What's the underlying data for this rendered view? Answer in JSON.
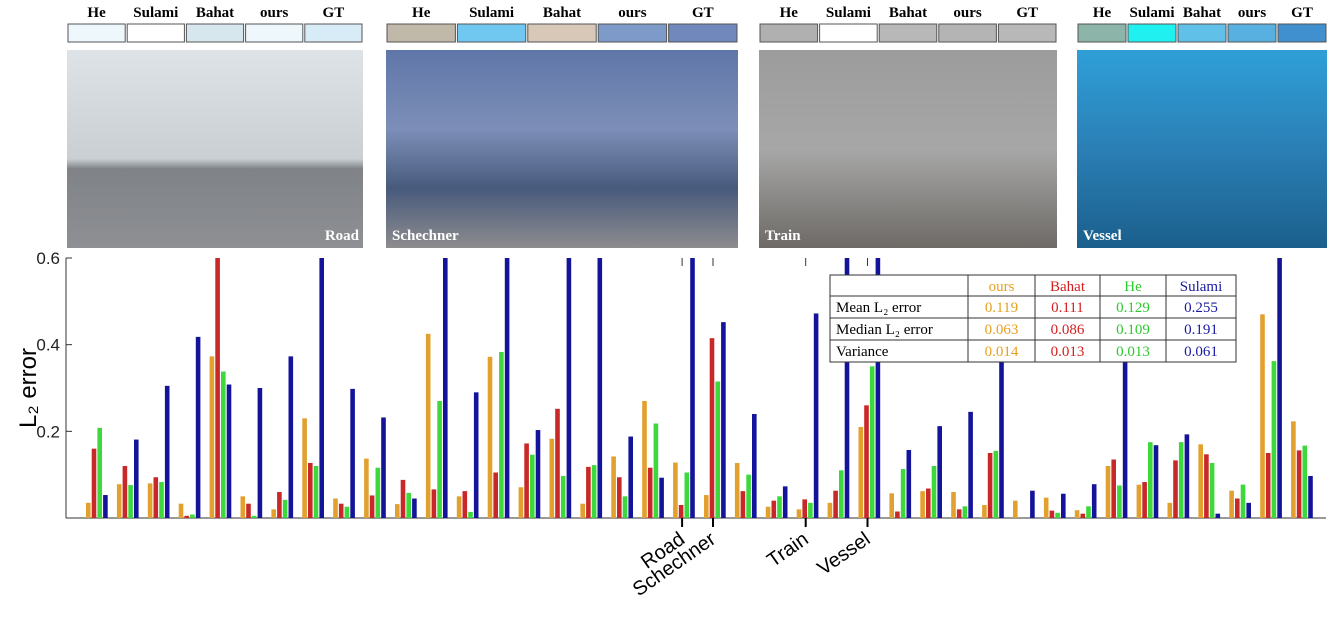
{
  "panels": [
    {
      "caption": "Road",
      "methods": [
        "He",
        "Sulami",
        "Bahat",
        "ours",
        "GT"
      ],
      "swatches": [
        "#eef8fc",
        "#ffffff",
        "#d6e8ee",
        "#eef8fc",
        "#d8ecf8"
      ]
    },
    {
      "caption": "Schechner",
      "methods": [
        "He",
        "Sulami",
        "Bahat",
        "ours",
        "GT"
      ],
      "swatches": [
        "#c0b8a8",
        "#70c8f0",
        "#d8c8b8",
        "#7e9ac8",
        "#7088bc"
      ]
    },
    {
      "caption": "Train",
      "methods": [
        "He",
        "Sulami",
        "Bahat",
        "ours",
        "GT"
      ],
      "swatches": [
        "#b0b0b0",
        "#ffffff",
        "#b8b8b8",
        "#b4b4b4",
        "#b8b8b8"
      ]
    },
    {
      "caption": "Vessel",
      "methods": [
        "He",
        "Sulami",
        "Bahat",
        "ours",
        "GT"
      ],
      "swatches": [
        "#8cb4a8",
        "#20f0f0",
        "#60c0e8",
        "#58b0e0",
        "#4090d0"
      ]
    }
  ],
  "chart_data": {
    "type": "bar",
    "y_label": "L₂ error",
    "categories": [
      null,
      null,
      null,
      null,
      null,
      null,
      null,
      null,
      null,
      null,
      null,
      null,
      null,
      null,
      null,
      null,
      null,
      null,
      null,
      "Road",
      "Schechner",
      null,
      null,
      "Train",
      null,
      "Vessel",
      null,
      null,
      null,
      null,
      null,
      null,
      null,
      null,
      null,
      null,
      null,
      null,
      null,
      null
    ],
    "series": [
      {
        "name": "ours",
        "color": "#e2a02f",
        "values": [
          0.035,
          0.078,
          0.08,
          0.033,
          0.373,
          0.05,
          0.02,
          0.23,
          0.045,
          0.137,
          0.032,
          0.425,
          0.05,
          0.372,
          0.071,
          0.183,
          0.033,
          0.142,
          0.27,
          0.128,
          0.053,
          0.127,
          0.026,
          0.02,
          0.035,
          0.21,
          0.057,
          0.062,
          0.06,
          0.03,
          0.04,
          0.047,
          0.018,
          0.12,
          0.077,
          0.035,
          0.17,
          0.063,
          0.47,
          0.223
        ]
      },
      {
        "name": "Bahat",
        "color": "#c82828",
        "values": [
          0.16,
          0.12,
          0.094,
          0.005,
          0.6,
          0.033,
          0.06,
          0.127,
          0.033,
          0.052,
          0.088,
          0.066,
          0.062,
          0.105,
          0.172,
          0.252,
          0.118,
          0.094,
          0.116,
          0.03,
          0.415,
          0.062,
          0.04,
          0.043,
          0.063,
          0.26,
          0.015,
          0.068,
          0.02,
          0.15,
          0,
          0.017,
          0.01,
          0.135,
          0.083,
          0.133,
          0.147,
          0.045,
          0.15,
          0.156
        ]
      },
      {
        "name": "He",
        "color": "#3cd83c",
        "values": [
          0.208,
          0.076,
          0.083,
          0.008,
          0.338,
          0.005,
          0.042,
          0.12,
          0.026,
          0.116,
          0.058,
          0.27,
          0.014,
          0.383,
          0.146,
          0.097,
          0.122,
          0.05,
          0.218,
          0.105,
          0.315,
          0.1,
          0.05,
          0.035,
          0.11,
          0.35,
          0.113,
          0.12,
          0.027,
          0.155,
          0,
          0.012,
          0.027,
          0.075,
          0.175,
          0.175,
          0.127,
          0.077,
          0.362,
          0.167
        ]
      },
      {
        "name": "Sulami",
        "color": "#14149a",
        "values": [
          0.053,
          0.181,
          0.305,
          0.418,
          0.308,
          0.3,
          0.373,
          0.6,
          0.298,
          0.232,
          0.045,
          0.6,
          0.29,
          0.6,
          0.203,
          0.6,
          0.6,
          0.188,
          0.093,
          0.6,
          0.452,
          0.24,
          0.073,
          0.472,
          0.6,
          0.6,
          0.157,
          0.212,
          0.245,
          0.4,
          0.063,
          0.056,
          0.078,
          0.4,
          0.168,
          0.193,
          0.01,
          0.035,
          0.6,
          0.097
        ]
      }
    ],
    "ylim": [
      0,
      0.6
    ],
    "yticks": [
      0.2,
      0.4,
      0.6
    ],
    "table": {
      "columns": [
        "ours",
        "Bahat",
        "He",
        "Sulami"
      ],
      "colors": [
        "#e6a020",
        "#d42020",
        "#30c830",
        "#1a1aa0"
      ],
      "rows": [
        {
          "label": "Mean L₂ error",
          "values": [
            0.119,
            0.111,
            0.129,
            0.255
          ]
        },
        {
          "label": "Median L₂ error",
          "values": [
            0.063,
            0.086,
            0.109,
            0.191
          ]
        },
        {
          "label": "Variance",
          "values": [
            0.014,
            0.013,
            0.013,
            0.061
          ]
        }
      ]
    }
  }
}
